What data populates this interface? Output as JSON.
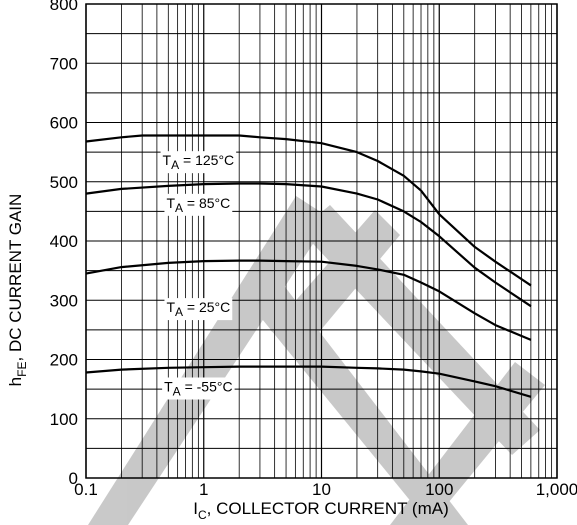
{
  "chart_data": {
    "type": "line",
    "title": "",
    "xlabel_parts": {
      "main": "I",
      "sub": "C",
      "rest": ", COLLECTOR CURRENT (mA)"
    },
    "ylabel_parts": {
      "main": "h",
      "sub": "FE",
      "rest": ", DC CURRENT GAIN"
    },
    "x_scale": "log",
    "xlim": [
      0.1,
      1000
    ],
    "ylim": [
      0,
      800
    ],
    "x_ticks": [
      {
        "value": 0.1,
        "label": "0.1"
      },
      {
        "value": 1,
        "label": "1"
      },
      {
        "value": 10,
        "label": "10"
      },
      {
        "value": 100,
        "label": "100"
      },
      {
        "value": 1000,
        "label": "1,000"
      }
    ],
    "y_ticks": [
      {
        "value": 0,
        "label": "0"
      },
      {
        "value": 100,
        "label": "100"
      },
      {
        "value": 200,
        "label": "200"
      },
      {
        "value": 300,
        "label": "300"
      },
      {
        "value": 400,
        "label": "400"
      },
      {
        "value": 500,
        "label": "500"
      },
      {
        "value": 600,
        "label": "600"
      },
      {
        "value": 700,
        "label": "700"
      },
      {
        "value": 800,
        "label": "800"
      }
    ],
    "grid": true,
    "series": [
      {
        "label_main": "T",
        "label_sub": "A",
        "label_rest": " = 125°C",
        "label_anchor": [
          0.9,
          528
        ],
        "x": [
          0.1,
          0.2,
          0.3,
          0.5,
          1,
          2,
          3,
          5,
          10,
          20,
          30,
          50,
          70,
          100,
          200,
          300,
          600
        ],
        "values": [
          568,
          575,
          578,
          578,
          578,
          578,
          575,
          572,
          565,
          550,
          535,
          510,
          485,
          445,
          390,
          365,
          325
        ]
      },
      {
        "label_main": "T",
        "label_sub": "A",
        "label_rest": " = 85°C",
        "label_anchor": [
          0.9,
          456
        ],
        "x": [
          0.1,
          0.2,
          0.5,
          1,
          2,
          3,
          5,
          10,
          20,
          30,
          50,
          70,
          100,
          200,
          300,
          600
        ],
        "values": [
          480,
          488,
          493,
          496,
          497,
          497,
          496,
          492,
          480,
          470,
          450,
          432,
          408,
          355,
          330,
          290
        ]
      },
      {
        "label_main": "T",
        "label_sub": "A",
        "label_rest": " = 25°C",
        "label_anchor": [
          0.9,
          280
        ],
        "x": [
          0.1,
          0.2,
          0.5,
          1,
          2,
          3,
          5,
          10,
          20,
          30,
          50,
          70,
          100,
          200,
          300,
          600
        ],
        "values": [
          345,
          356,
          363,
          366,
          367,
          367,
          366,
          365,
          358,
          352,
          343,
          330,
          315,
          278,
          258,
          233
        ]
      },
      {
        "label_main": "T",
        "label_sub": "A",
        "label_rest": " = -55°C",
        "label_anchor": [
          0.9,
          146
        ],
        "x": [
          0.1,
          0.2,
          0.5,
          1,
          2,
          3,
          5,
          10,
          20,
          30,
          50,
          70,
          100,
          200,
          300,
          600
        ],
        "values": [
          178,
          183,
          186,
          187,
          188,
          188,
          188,
          188,
          186,
          185,
          183,
          180,
          176,
          163,
          155,
          137
        ]
      }
    ],
    "watermark_color": "#b4b4b4"
  }
}
